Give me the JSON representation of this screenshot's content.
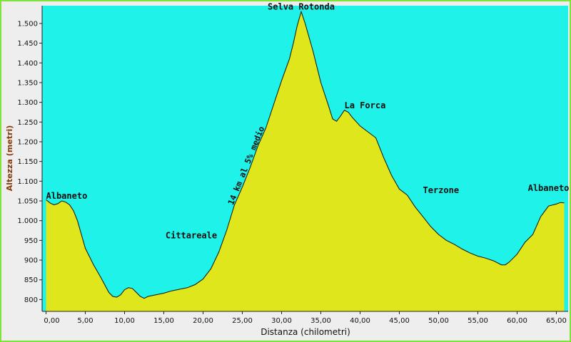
{
  "chart_data": {
    "type": "area",
    "xlabel": "Distanza (chilometri)",
    "ylabel": "Altezza (metri)",
    "xlim": [
      -0.5,
      66.5
    ],
    "ylim": [
      770,
      1545
    ],
    "x_ticks": [
      "0,00",
      "5,00",
      "10,00",
      "15,00",
      "20,00",
      "25,00",
      "30,00",
      "35,00",
      "40,00",
      "45,00",
      "50,00",
      "55,00",
      "60,00",
      "65,00"
    ],
    "x_tick_values": [
      0,
      5,
      10,
      15,
      20,
      25,
      30,
      35,
      40,
      45,
      50,
      55,
      60,
      65
    ],
    "y_ticks": [
      "800",
      "850",
      "900",
      "950",
      "1.000",
      "1.050",
      "1.100",
      "1.150",
      "1.200",
      "1.250",
      "1.300",
      "1.350",
      "1.400",
      "1.450",
      "1.500"
    ],
    "y_tick_values": [
      800,
      850,
      900,
      950,
      1000,
      1050,
      1100,
      1150,
      1200,
      1250,
      1300,
      1350,
      1400,
      1450,
      1500
    ],
    "grid": false,
    "colors": {
      "fill": "#dfe61c",
      "background": "#1ff2e8",
      "line": "#111111"
    },
    "x": [
      0,
      0.5,
      1,
      1.5,
      2,
      2.5,
      3,
      3.5,
      4,
      5,
      6,
      7,
      8,
      8.5,
      9,
      9.5,
      10,
      10.5,
      11,
      11.5,
      12,
      12.5,
      13,
      14,
      15,
      16,
      17,
      18,
      19,
      20,
      21,
      22,
      23,
      24,
      25,
      26,
      27,
      28,
      29,
      30,
      31,
      31.5,
      32,
      32.5,
      33,
      34,
      35,
      36,
      36.5,
      37,
      37.5,
      38,
      38.5,
      39,
      40,
      41,
      42,
      43,
      44,
      45,
      46,
      47,
      48,
      49,
      50,
      51,
      52,
      53,
      54,
      55,
      56,
      57,
      58,
      58.5,
      59,
      60,
      61,
      62,
      63,
      64,
      65,
      65.5,
      66
    ],
    "values": [
      1053,
      1045,
      1040,
      1043,
      1050,
      1047,
      1040,
      1025,
      1000,
      930,
      890,
      855,
      818,
      808,
      806,
      812,
      825,
      830,
      828,
      818,
      808,
      803,
      808,
      812,
      816,
      822,
      826,
      830,
      838,
      852,
      878,
      920,
      975,
      1040,
      1085,
      1135,
      1190,
      1235,
      1295,
      1355,
      1410,
      1450,
      1495,
      1530,
      1500,
      1430,
      1350,
      1290,
      1258,
      1252,
      1265,
      1280,
      1275,
      1262,
      1240,
      1225,
      1210,
      1160,
      1115,
      1080,
      1065,
      1035,
      1010,
      985,
      965,
      950,
      940,
      928,
      918,
      910,
      905,
      898,
      888,
      888,
      895,
      915,
      945,
      965,
      1010,
      1037,
      1042,
      1046,
      1045
    ],
    "annotations": [
      {
        "text": "Albaneto",
        "x": 0,
        "y": 1055
      },
      {
        "text": "Cittareale",
        "x": 18.5,
        "y": 955
      },
      {
        "text": "14 km al 5% medio",
        "x": 24,
        "y": 1060
      },
      {
        "text": "Selva Rotonda",
        "x": 32.5,
        "y": 1535
      },
      {
        "text": "La Forca",
        "x": 38,
        "y": 1285
      },
      {
        "text": "Terzone",
        "x": 48,
        "y": 1070
      },
      {
        "text": "Albaneto",
        "x": 64,
        "y": 1075
      }
    ]
  }
}
